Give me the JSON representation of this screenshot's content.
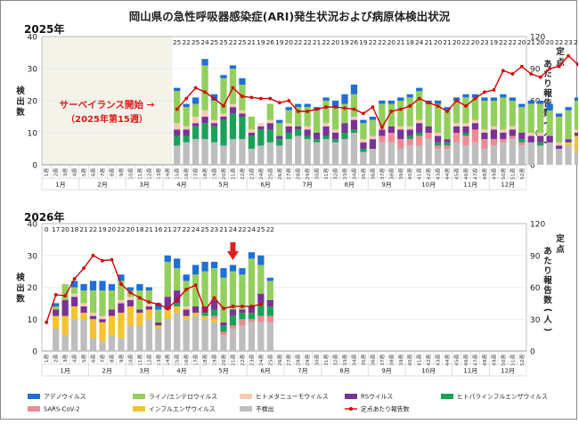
{
  "title": "岡山県の急性呼吸器感染症(ARI)発生状況および病原体検出状況",
  "colors": {
    "adeno": "#1f6fd6",
    "rhino": "#92cf5c",
    "hmpv": "#f7cbb0",
    "rs": "#7a3296",
    "hpiv": "#1aa158",
    "sars": "#ee8a92",
    "flu": "#f5c230",
    "none": "#bdbdbd",
    "line": "#d40000",
    "shade": "#f3f3ea",
    "annotation": "#e0171a"
  },
  "legend": [
    {
      "key": "adeno",
      "label": "アデノウイルス"
    },
    {
      "key": "rhino",
      "label": "ライノ/エンテロウイルス"
    },
    {
      "key": "hmpv",
      "label": "ヒトメタニューモウイルス"
    },
    {
      "key": "rs",
      "label": "RSウイルス"
    },
    {
      "key": "hpiv",
      "label": "ヒトパラインフルエンザウイルス"
    },
    {
      "key": "sars",
      "label": "SARS-CoV-2"
    },
    {
      "key": "flu",
      "label": "インフルエンザウイルス"
    },
    {
      "key": "none",
      "label": "不検出"
    },
    {
      "key": "line",
      "label": "定点あたり報告数"
    }
  ],
  "chart_data": [
    {
      "type": "bar",
      "year_label": "2025年",
      "stacked": true,
      "ylabel": "検出数",
      "y2label": "定点あたり報告数(人)",
      "ylim": [
        0,
        40
      ],
      "y2lim": [
        0,
        120
      ],
      "yticks": [
        0,
        10,
        20,
        30,
        40
      ],
      "y2ticks": [
        0,
        30,
        60,
        90,
        120
      ],
      "week_labels": [
        "1週",
        "2週",
        "3週",
        "4週",
        "5週",
        "6週",
        "7週",
        "8週",
        "9週",
        "10週",
        "11週",
        "12週",
        "13週",
        "14週",
        "15週",
        "16週",
        "17週",
        "18週",
        "19週",
        "20週",
        "21週",
        "22週",
        "23週",
        "24週",
        "25週",
        "26週",
        "27週",
        "28週",
        "29週",
        "30週",
        "31週",
        "32週",
        "33週",
        "34週",
        "35週",
        "36週",
        "37週",
        "38週",
        "39週",
        "40週",
        "41週",
        "42週",
        "43週",
        "44週",
        "45週",
        "46週",
        "47週",
        "48週",
        "49週",
        "50週",
        "51週",
        "52週"
      ],
      "months": [
        {
          "label": "1月",
          "start": 1,
          "end": 4
        },
        {
          "label": "2月",
          "start": 5,
          "end": 9
        },
        {
          "label": "3月",
          "start": 10,
          "end": 13
        },
        {
          "label": "4月",
          "start": 14,
          "end": 17
        },
        {
          "label": "5月",
          "start": 18,
          "end": 22
        },
        {
          "label": "6月",
          "start": 23,
          "end": 26
        },
        {
          "label": "7月",
          "start": 27,
          "end": 31
        },
        {
          "label": "8月",
          "start": 32,
          "end": 35
        },
        {
          "label": "9月",
          "start": 36,
          "end": 39
        },
        {
          "label": "10月",
          "start": 40,
          "end": 44
        },
        {
          "label": "11月",
          "start": 45,
          "end": 48
        },
        {
          "label": "12月",
          "start": 49,
          "end": 52
        }
      ],
      "pre_surveillance_weeks": 14,
      "annotation": {
        "line1": "サーベイランス開始 →",
        "line2": "（2025年第15週）"
      },
      "first_week": 15,
      "specimen_counts": [
        "25",
        "22",
        "25",
        "24",
        "25",
        "25",
        "22",
        "25",
        "21",
        "19",
        "26",
        "19",
        "20",
        "22",
        "22",
        "21",
        "22",
        "20",
        "19",
        "26",
        "19",
        "22",
        "22",
        "20",
        "21",
        "18",
        "24",
        "21",
        "20",
        "21",
        "20",
        "22",
        "20",
        "23",
        "19",
        "22",
        "22",
        "20",
        "21",
        "20",
        "20",
        "22",
        "23",
        "22",
        "21",
        "23",
        "20",
        "20",
        "21",
        "23",
        "20",
        "19"
      ],
      "series": [
        {
          "key": "none",
          "values": [
            6,
            7,
            8,
            8,
            7,
            6,
            8,
            8,
            5,
            6,
            7,
            6,
            8,
            9,
            8,
            7,
            8,
            7,
            8,
            10,
            4,
            5,
            7,
            7,
            5,
            6,
            6,
            8,
            5,
            5,
            7,
            6,
            7,
            5,
            6,
            7,
            8,
            6,
            7,
            6,
            7,
            5,
            6,
            4,
            6,
            5,
            4,
            3,
            4,
            5,
            4,
            3
          ]
        },
        {
          "key": "flu",
          "values": [
            0,
            0,
            0,
            0,
            0,
            0,
            0,
            0,
            0,
            0,
            0,
            0,
            0,
            0,
            0,
            0,
            0,
            0,
            0,
            0,
            0,
            0,
            0,
            0,
            0,
            0,
            0,
            0,
            0,
            0,
            0,
            0,
            0,
            0,
            0,
            0,
            0,
            0,
            0,
            0,
            0,
            0,
            1,
            5,
            6,
            8,
            9,
            8,
            9,
            6,
            7,
            9
          ]
        },
        {
          "key": "sars",
          "values": [
            0,
            0,
            0,
            0,
            0,
            0,
            0,
            0,
            0,
            0,
            0,
            0,
            0,
            0,
            0,
            0,
            0,
            0,
            0,
            0,
            0,
            0,
            2,
            3,
            3,
            2,
            3,
            2,
            1,
            1,
            3,
            3,
            4,
            3,
            2,
            1,
            1,
            1,
            0,
            0,
            0,
            0,
            0,
            0,
            0,
            0,
            0,
            0,
            0,
            0,
            0,
            0
          ]
        },
        {
          "key": "hpiv",
          "values": [
            3,
            2,
            4,
            5,
            5,
            8,
            8,
            7,
            4,
            5,
            4,
            2,
            2,
            2,
            1,
            1,
            1,
            1,
            2,
            1,
            1,
            0,
            0,
            0,
            0,
            1,
            1,
            0,
            1,
            1,
            0,
            1,
            0,
            0,
            0,
            0,
            0,
            1,
            0,
            1,
            0,
            0,
            0,
            0,
            0,
            0,
            0,
            0,
            0,
            0,
            0,
            0
          ]
        },
        {
          "key": "rs",
          "values": [
            2,
            2,
            1,
            2,
            1,
            1,
            2,
            1,
            1,
            1,
            2,
            1,
            2,
            1,
            2,
            2,
            3,
            2,
            3,
            3,
            2,
            3,
            2,
            2,
            3,
            2,
            3,
            2,
            2,
            1,
            2,
            2,
            2,
            2,
            3,
            2,
            2,
            2,
            2,
            2,
            2,
            1,
            1,
            1,
            1,
            1,
            1,
            1,
            1,
            1,
            1,
            2
          ]
        },
        {
          "key": "hmpv",
          "values": [
            2,
            1,
            2,
            2,
            1,
            1,
            1,
            1,
            1,
            1,
            1,
            0,
            1,
            0,
            1,
            0,
            1,
            1,
            0,
            1,
            1,
            1,
            1,
            0,
            1,
            1,
            1,
            0,
            1,
            0,
            1,
            1,
            1,
            1,
            1,
            1,
            1,
            0,
            1,
            1,
            0,
            1,
            0,
            1,
            0,
            1,
            1,
            1,
            0,
            1,
            0,
            1
          ]
        },
        {
          "key": "rhino",
          "values": [
            10,
            6,
            4,
            14,
            6,
            11,
            11,
            8,
            4,
            0,
            5,
            4,
            4,
            6,
            6,
            7,
            7,
            7,
            6,
            7,
            5,
            5,
            7,
            7,
            8,
            9,
            9,
            7,
            9,
            9,
            7,
            8,
            7,
            9,
            8,
            10,
            8,
            8,
            9,
            9,
            8,
            8,
            9,
            9,
            8,
            8,
            5,
            8,
            6,
            5,
            7,
            1
          ]
        },
        {
          "key": "adeno",
          "values": [
            1,
            1,
            2,
            2,
            2,
            1,
            1,
            2,
            0,
            0,
            0,
            1,
            1,
            1,
            1,
            1,
            1,
            2,
            3,
            3,
            1,
            1,
            1,
            1,
            1,
            1,
            1,
            1,
            1,
            1,
            1,
            1,
            1,
            1,
            1,
            1,
            1,
            1,
            1,
            1,
            2,
            1,
            1,
            1,
            1,
            1,
            1,
            0,
            0,
            1,
            0,
            0
          ]
        }
      ],
      "line_values": [
        52,
        62,
        72,
        68,
        62,
        55,
        72,
        64,
        63,
        62,
        62,
        58,
        60,
        50,
        50,
        52,
        54,
        54,
        53,
        52,
        48,
        54,
        35,
        50,
        52,
        55,
        62,
        58,
        55,
        50,
        60,
        55,
        62,
        68,
        70,
        88,
        85,
        92,
        85,
        82,
        90,
        92,
        102,
        94,
        90,
        98,
        96,
        95,
        78,
        78,
        80,
        78
      ]
    },
    {
      "type": "bar",
      "year_label": "2026年",
      "stacked": true,
      "ylabel": "検出数",
      "y2label": "定点あたり報告数(人)",
      "ylim": [
        0,
        40
      ],
      "y2lim": [
        0,
        120
      ],
      "yticks": [
        0,
        10,
        20,
        30,
        40
      ],
      "y2ticks": [
        0,
        30,
        60,
        90,
        120
      ],
      "week_labels": [
        "1週",
        "2週",
        "3週",
        "4週",
        "5週",
        "6週",
        "7週",
        "8週",
        "9週",
        "10週",
        "11週",
        "12週",
        "13週",
        "14週",
        "15週",
        "16週",
        "17週",
        "18週",
        "19週",
        "20週",
        "21週",
        "22週",
        "23週",
        "24週",
        "25週",
        "26週",
        "27週",
        "28週",
        "29週",
        "30週",
        "31週",
        "32週",
        "33週",
        "34週",
        "35週",
        "36週",
        "37週",
        "38週",
        "39週",
        "40週",
        "41週",
        "42週",
        "43週",
        "44週",
        "45週",
        "46週",
        "47週",
        "48週",
        "49週",
        "50週",
        "51週",
        "52週"
      ],
      "months": [
        {
          "label": "1月",
          "start": 1,
          "end": 5
        },
        {
          "label": "2月",
          "start": 6,
          "end": 9
        },
        {
          "label": "3月",
          "start": 10,
          "end": 13
        },
        {
          "label": "4月",
          "start": 14,
          "end": 17
        },
        {
          "label": "5月",
          "start": 18,
          "end": 22
        },
        {
          "label": "6月",
          "start": 23,
          "end": 26
        },
        {
          "label": "7月",
          "start": 27,
          "end": 30
        },
        {
          "label": "8月",
          "start": 31,
          "end": 35
        },
        {
          "label": "9月",
          "start": 36,
          "end": 39
        },
        {
          "label": "10月",
          "start": 40,
          "end": 44
        },
        {
          "label": "11月",
          "start": 45,
          "end": 48
        },
        {
          "label": "12月",
          "start": 49,
          "end": 52
        }
      ],
      "first_week": 1,
      "current_week": 21,
      "specimen_counts": [
        "0",
        "17",
        "20",
        "18",
        "21",
        "22",
        "19",
        "20",
        "22",
        "20",
        "18",
        "21",
        "16",
        "21",
        "27",
        "22",
        "24",
        "25",
        "23",
        "21",
        "24",
        "22",
        "24",
        "25",
        "22"
      ],
      "series": [
        {
          "key": "none",
          "values": [
            0,
            7,
            5,
            10,
            10,
            4,
            3,
            5,
            4,
            8,
            8,
            10,
            7,
            10,
            12,
            10,
            11,
            10,
            9,
            5,
            7,
            8,
            9,
            9,
            9
          ]
        },
        {
          "key": "flu",
          "values": [
            0,
            4,
            6,
            4,
            2,
            6,
            6,
            6,
            8,
            6,
            4,
            3,
            1,
            3,
            2,
            1,
            1,
            1,
            1,
            0,
            0,
            0,
            0,
            0,
            0
          ]
        },
        {
          "key": "sars",
          "values": [
            0,
            0,
            0,
            0,
            0,
            0,
            0,
            0,
            0,
            0,
            0,
            0,
            0,
            0,
            0,
            0,
            0,
            0,
            1,
            1,
            1,
            2,
            1,
            2,
            2
          ]
        },
        {
          "key": "hpiv",
          "values": [
            0,
            0,
            0,
            0,
            0,
            0,
            0,
            0,
            0,
            0,
            0,
            0,
            0,
            0,
            1,
            0,
            0,
            1,
            2,
            2,
            3,
            2,
            2,
            4,
            3
          ]
        },
        {
          "key": "rs",
          "values": [
            0,
            2,
            5,
            3,
            2,
            1,
            1,
            2,
            3,
            2,
            1,
            1,
            1,
            4,
            4,
            2,
            2,
            2,
            3,
            1,
            2,
            1,
            2,
            3,
            2
          ]
        },
        {
          "key": "hmpv",
          "values": [
            0,
            0,
            0,
            1,
            1,
            1,
            1,
            0,
            1,
            1,
            0,
            1,
            0,
            0,
            0,
            1,
            0,
            0,
            0,
            0,
            0,
            0,
            0,
            0,
            0
          ]
        },
        {
          "key": "rhino",
          "values": [
            0,
            1,
            5,
            2,
            4,
            7,
            8,
            6,
            6,
            2,
            6,
            4,
            4,
            11,
            7,
            8,
            10,
            11,
            10,
            14,
            12,
            11,
            15,
            9,
            6
          ]
        },
        {
          "key": "adeno",
          "values": [
            0,
            1,
            0,
            2,
            2,
            3,
            3,
            2,
            2,
            1,
            2,
            1,
            2,
            2,
            3,
            2,
            3,
            3,
            2,
            3,
            2,
            2,
            2,
            3,
            1
          ]
        }
      ],
      "line_values": [
        27,
        53,
        52,
        68,
        78,
        90,
        85,
        86,
        63,
        55,
        50,
        46,
        44,
        40,
        48,
        58,
        62,
        38,
        50,
        40,
        42,
        42,
        42,
        44
      ]
    }
  ]
}
